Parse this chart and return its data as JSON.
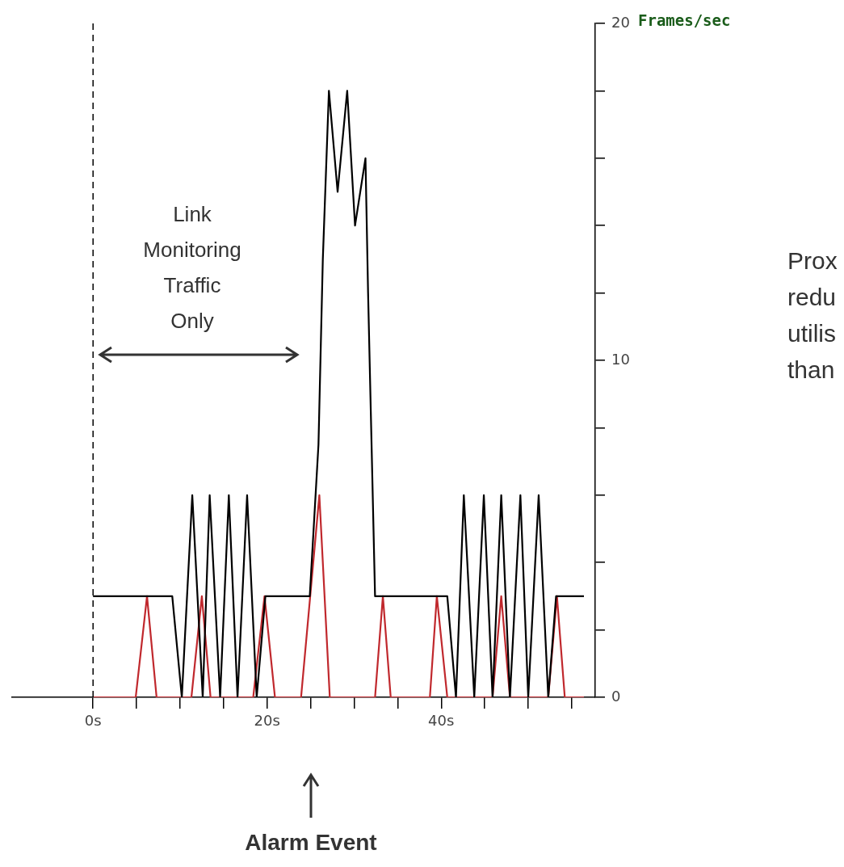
{
  "chart_data": {
    "type": "line",
    "ylabel": "Frames/sec",
    "marker": "none",
    "annotations": [
      "Link\nMonitoring\nTraffic\nOnly",
      "Alarm Event",
      "Prox\nredu\nutilis\nthan"
    ],
    "xlim": [
      -9.3,
      57.7
    ],
    "xticks": [
      {
        "value": 0,
        "label": "0s"
      },
      {
        "value": 5,
        "label": null
      },
      {
        "value": 10,
        "label": null
      },
      {
        "value": 15,
        "label": null
      },
      {
        "value": 20,
        "label": "20s"
      },
      {
        "value": 25,
        "label": null
      },
      {
        "value": 30,
        "label": null
      },
      {
        "value": 35,
        "label": null
      },
      {
        "value": 40,
        "label": "40s"
      },
      {
        "value": 45,
        "label": null
      },
      {
        "value": 50,
        "label": null
      },
      {
        "value": 55,
        "label": null
      }
    ],
    "ylim": [
      0,
      20
    ],
    "yticks": [
      0,
      {
        "value": 2,
        "label": null
      },
      {
        "value": 4,
        "label": null
      },
      {
        "value": 6,
        "label": null
      },
      {
        "value": 8,
        "label": null
      },
      10,
      {
        "value": 12,
        "label": null
      },
      {
        "value": 14,
        "label": null
      },
      {
        "value": 16,
        "label": null
      },
      {
        "value": 18,
        "label": null
      },
      20
    ],
    "ref_lines": [
      {
        "axis": "x",
        "value": 0,
        "color": "#000000",
        "line_style": "dashed"
      }
    ],
    "series": [
      {
        "color": "#000000",
        "x": [
          0,
          9.1,
          10.2,
          11.4,
          12.6,
          13.4,
          14.6,
          15.6,
          16.6,
          17.7,
          18.8,
          19.8,
          24.9,
          25.9,
          26.4,
          27.1,
          28.1,
          29.2,
          30.1,
          31.3,
          31.6,
          32.4,
          40.7,
          41.7,
          42.6,
          43.8,
          44.9,
          45.9,
          46.9,
          47.9,
          49.1,
          50.0,
          51.2,
          52.3,
          53.2,
          56.4
        ],
        "values": [
          3,
          3,
          0,
          6,
          0,
          6,
          0,
          6,
          0,
          6,
          0,
          3,
          3,
          7.5,
          13,
          18,
          15,
          18,
          14,
          16,
          12,
          3,
          3,
          0,
          6,
          0,
          6,
          0,
          6,
          0,
          6,
          0,
          6,
          0,
          3,
          3
        ]
      },
      {
        "color": "#c0282d",
        "x": [
          0,
          4.9,
          6.2,
          7.3,
          11.3,
          12.5,
          13.5,
          18.4,
          19.7,
          20.9,
          23.9,
          26.0,
          27.2,
          32.4,
          33.3,
          34.2,
          38.7,
          39.5,
          40.7,
          45.9,
          46.9,
          47.9,
          52.3,
          53.3,
          54.2,
          56.4
        ],
        "values": [
          0,
          0,
          3,
          0,
          0,
          3,
          0,
          0,
          3,
          0,
          0,
          6,
          0,
          0,
          3,
          0,
          0,
          3,
          0,
          0,
          3,
          0,
          0,
          3,
          0,
          0
        ]
      }
    ]
  }
}
